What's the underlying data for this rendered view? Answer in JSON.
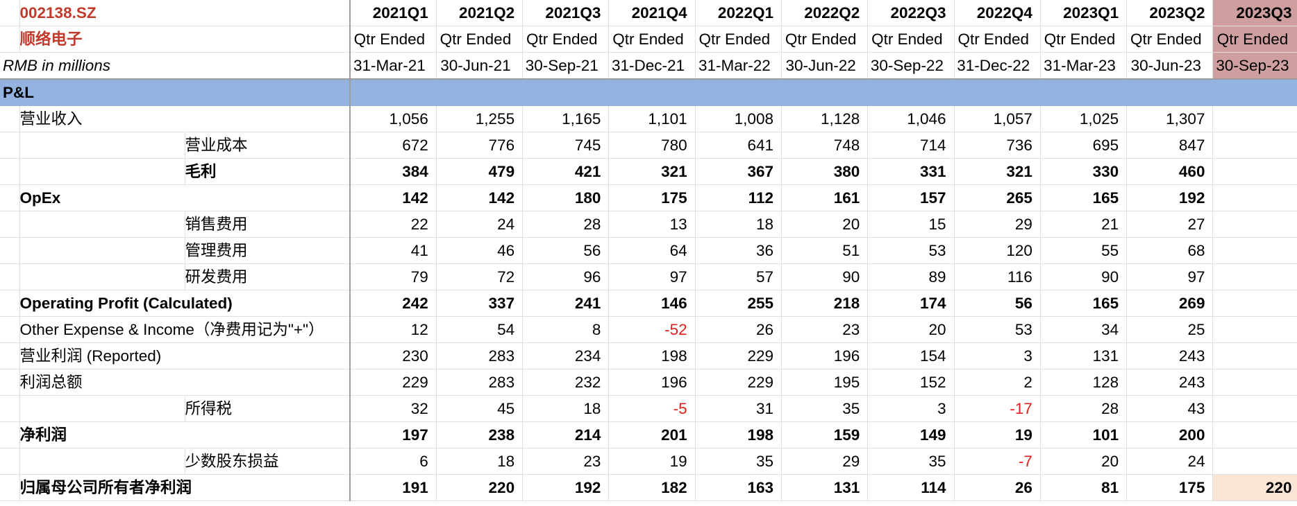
{
  "header": {
    "ticker": "002138.SZ",
    "company": "顺络电子",
    "unit": "RMB in millions",
    "quarters": [
      "2021Q1",
      "2021Q2",
      "2021Q3",
      "2021Q4",
      "2022Q1",
      "2022Q2",
      "2022Q3",
      "2022Q4",
      "2023Q1",
      "2023Q2",
      "2023Q3"
    ],
    "period_label": "Qtr Ended",
    "dates": [
      "31-Mar-21",
      "30-Jun-21",
      "30-Sep-21",
      "31-Dec-21",
      "31-Mar-22",
      "30-Jun-22",
      "30-Sep-22",
      "31-Dec-22",
      "31-Mar-23",
      "30-Jun-23",
      "30-Sep-23"
    ]
  },
  "section": {
    "label": "P&L"
  },
  "rows": [
    {
      "label": "营业收入",
      "indent": 1,
      "bold": false,
      "values": [
        "1,056",
        "1,255",
        "1,165",
        "1,101",
        "1,008",
        "1,128",
        "1,046",
        "1,057",
        "1,025",
        "1,307",
        ""
      ]
    },
    {
      "label": "营业成本",
      "indent": 2,
      "bold": false,
      "values": [
        "672",
        "776",
        "745",
        "780",
        "641",
        "748",
        "714",
        "736",
        "695",
        "847",
        ""
      ]
    },
    {
      "label": "毛利",
      "indent": 2,
      "bold": true,
      "values": [
        "384",
        "479",
        "421",
        "321",
        "367",
        "380",
        "331",
        "321",
        "330",
        "460",
        ""
      ]
    },
    {
      "label": "OpEx",
      "indent": 1,
      "bold": true,
      "values": [
        "142",
        "142",
        "180",
        "175",
        "112",
        "161",
        "157",
        "265",
        "165",
        "192",
        ""
      ]
    },
    {
      "label": "销售费用",
      "indent": 2,
      "bold": false,
      "values": [
        "22",
        "24",
        "28",
        "13",
        "18",
        "20",
        "15",
        "29",
        "21",
        "27",
        ""
      ]
    },
    {
      "label": "管理费用",
      "indent": 2,
      "bold": false,
      "values": [
        "41",
        "46",
        "56",
        "64",
        "36",
        "51",
        "53",
        "120",
        "55",
        "68",
        ""
      ]
    },
    {
      "label": "研发费用",
      "indent": 2,
      "bold": false,
      "values": [
        "79",
        "72",
        "96",
        "97",
        "57",
        "90",
        "89",
        "116",
        "90",
        "97",
        ""
      ]
    },
    {
      "label": "Operating Profit (Calculated)",
      "indent": 1,
      "bold": true,
      "values": [
        "242",
        "337",
        "241",
        "146",
        "255",
        "218",
        "174",
        "56",
        "165",
        "269",
        ""
      ]
    },
    {
      "label": "Other Expense & Income（净费用记为\"+\"）",
      "indent": 1,
      "bold": false,
      "values": [
        "12",
        "54",
        "8",
        "-52",
        "26",
        "23",
        "20",
        "53",
        "34",
        "25",
        ""
      ]
    },
    {
      "label": "营业利润 (Reported)",
      "indent": 1,
      "bold": false,
      "values": [
        "230",
        "283",
        "234",
        "198",
        "229",
        "196",
        "154",
        "3",
        "131",
        "243",
        ""
      ]
    },
    {
      "label": "利润总额",
      "indent": 1,
      "bold": false,
      "values": [
        "229",
        "283",
        "232",
        "196",
        "229",
        "195",
        "152",
        "2",
        "128",
        "243",
        ""
      ]
    },
    {
      "label": "所得税",
      "indent": 2,
      "bold": false,
      "values": [
        "32",
        "45",
        "18",
        "-5",
        "31",
        "35",
        "3",
        "-17",
        "28",
        "43",
        ""
      ]
    },
    {
      "label": "净利润",
      "indent": 1,
      "bold": true,
      "values": [
        "197",
        "238",
        "214",
        "201",
        "198",
        "159",
        "149",
        "19",
        "101",
        "200",
        ""
      ]
    },
    {
      "label": "少数股东损益",
      "indent": 2,
      "bold": false,
      "values": [
        "6",
        "18",
        "23",
        "19",
        "35",
        "29",
        "35",
        "-7",
        "20",
        "24",
        ""
      ]
    },
    {
      "label": "归属母公司所有者净利润",
      "indent": 1,
      "bold": true,
      "values": [
        "191",
        "220",
        "192",
        "182",
        "163",
        "131",
        "114",
        "26",
        "81",
        "175",
        "220"
      ]
    }
  ],
  "colors": {
    "ticker_red": "#c0392b",
    "negative_red": "#e0201c",
    "section_blue": "#95b3e0",
    "highlight_column": "#cf9fa0",
    "peach_cell": "#fbe5d6"
  }
}
